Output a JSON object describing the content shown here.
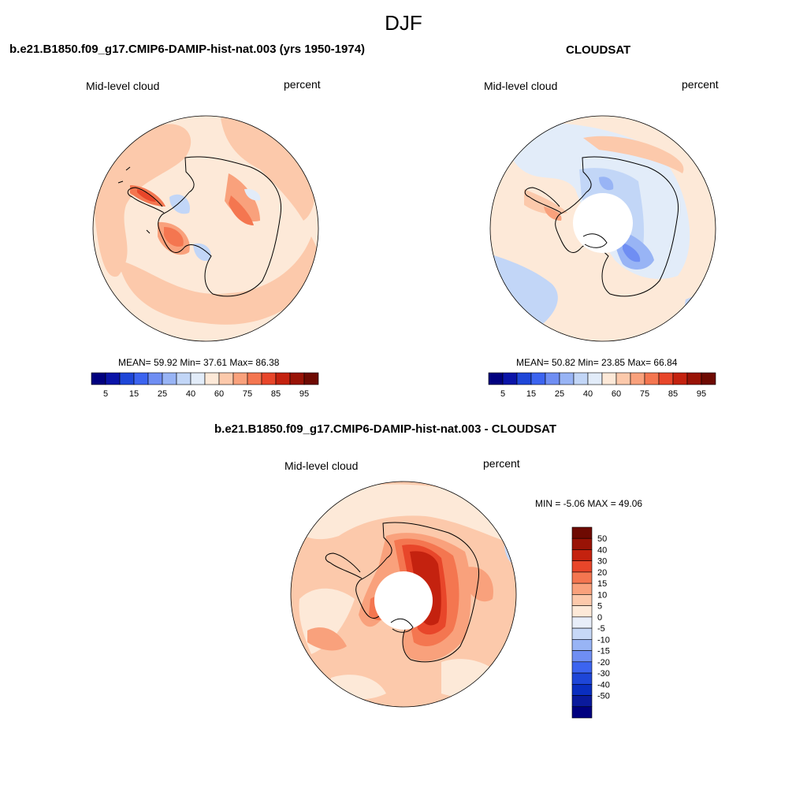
{
  "title": "DJF",
  "colors": {
    "abs_scale": [
      "#00007f",
      "#0a14a8",
      "#1e46d8",
      "#3c64f0",
      "#6f8ef3",
      "#98b4f5",
      "#c2d6f7",
      "#e2ecf9",
      "#fde9d8",
      "#fcc9ab",
      "#f9a17c",
      "#f47650",
      "#e8462a",
      "#c4220f",
      "#991306",
      "#6e0a02"
    ],
    "diff_scale": [
      "#00007f",
      "#0a1a9c",
      "#0a2ec0",
      "#1e46d8",
      "#3c64f0",
      "#6f8ef3",
      "#98b4f5",
      "#c7d8f7",
      "#e8eef9",
      "#fde9d8",
      "#fcc9ab",
      "#f9a17c",
      "#f47650",
      "#e8462a",
      "#c4220f",
      "#991306",
      "#6e0a02"
    ]
  },
  "panels": {
    "model": {
      "title": "b.e21.B1850.f09_g17.CMIP6-DAMIP-hist-nat.003 (yrs 1950-1974)",
      "left_label": "Mid-level cloud",
      "right_label": "percent",
      "stats": "MEAN=  59.92  Min=  37.61  Max=  86.38",
      "colorbar_ticks": [
        "5",
        "15",
        "25",
        "40",
        "60",
        "75",
        "85",
        "95"
      ]
    },
    "obs": {
      "title": "CLOUDSAT",
      "left_label": "Mid-level cloud",
      "right_label": "percent",
      "stats": "MEAN=  50.82  Min=  23.85  Max=  66.84",
      "colorbar_ticks": [
        "5",
        "15",
        "25",
        "40",
        "60",
        "75",
        "85",
        "95"
      ]
    },
    "diff": {
      "title": "b.e21.B1850.f09_g17.CMIP6-DAMIP-hist-nat.003 - CLOUDSAT",
      "left_label": "Mid-level cloud",
      "right_label": "percent",
      "stats": "MIN =  -5.06 MAX =  49.06",
      "colorbar_ticks": [
        "50",
        "40",
        "30",
        "20",
        "15",
        "10",
        "5",
        "0",
        "-5",
        "-10",
        "-15",
        "-20",
        "-30",
        "-40",
        "-50"
      ]
    }
  }
}
